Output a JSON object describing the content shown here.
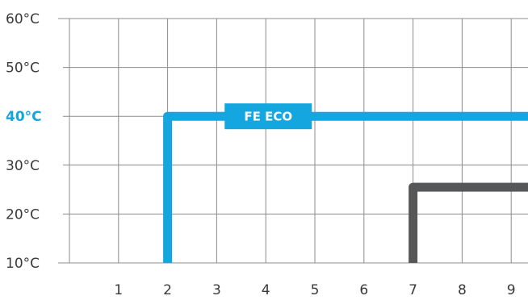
{
  "chart_data": {
    "type": "line",
    "grid": true,
    "xlim": [
      0,
      9
    ],
    "ylim": [
      10,
      60
    ],
    "x_ticks": [
      "1",
      "2",
      "3",
      "4",
      "5",
      "6",
      "7",
      "8",
      "9"
    ],
    "y_ticks": [
      {
        "value": 10,
        "label": "10°C"
      },
      {
        "value": 20,
        "label": "20°C"
      },
      {
        "value": 30,
        "label": "30°C"
      },
      {
        "value": 40,
        "label": "40°C",
        "highlight": true
      },
      {
        "value": 50,
        "label": "50°C"
      },
      {
        "value": 60,
        "label": "60°C"
      }
    ],
    "series": [
      {
        "name": "FE ECO",
        "color": "#14a6df",
        "points": [
          [
            2,
            10
          ],
          [
            2,
            40
          ],
          [
            9,
            40
          ]
        ],
        "label_at": [
          4.05,
          40
        ]
      },
      {
        "color": "#555759",
        "points": [
          [
            7,
            10
          ],
          [
            7,
            25.5
          ],
          [
            9,
            25.5
          ]
        ]
      }
    ]
  }
}
